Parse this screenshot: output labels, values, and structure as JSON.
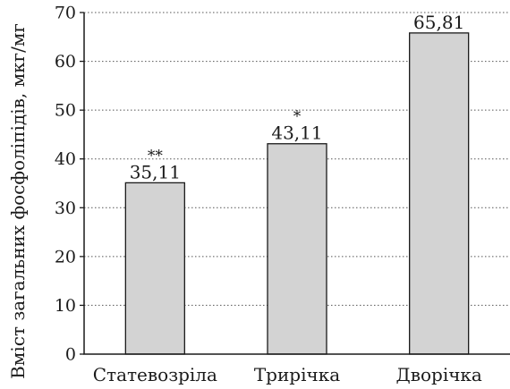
{
  "chart_data": {
    "type": "bar",
    "title": "",
    "ylabel": "Вміст загальних фосфоліпідів, мкг/мг",
    "xlabel": "",
    "ylim": [
      0,
      70
    ],
    "yticks": [
      0,
      10,
      20,
      30,
      40,
      50,
      60,
      70
    ],
    "grid": true,
    "bar_color": "#d3d3d3",
    "categories": [
      "Статевозріла",
      "Трирічка",
      "Дворічка"
    ],
    "values": [
      35.11,
      43.11,
      65.81
    ],
    "value_labels": [
      "35,11",
      "43,11",
      "65,81"
    ],
    "significance": [
      "**",
      "*",
      ""
    ]
  }
}
